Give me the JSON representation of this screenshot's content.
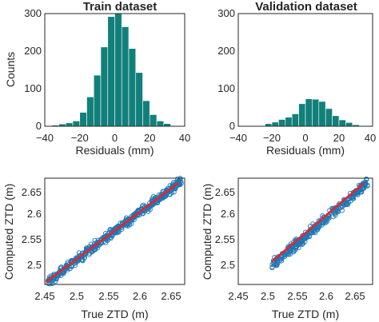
{
  "colors": {
    "bar": "#12807a",
    "scatter": "#1f77b4",
    "fit": "#e8232a",
    "axis": "#262626"
  },
  "chart_data": [
    {
      "type": "bar",
      "title": "Train dataset",
      "xlabel": "Residuals (mm)",
      "ylabel": "Counts",
      "xlim": [
        -40,
        40
      ],
      "ylim": [
        0,
        300
      ],
      "xticks": [
        "−40",
        "−20",
        "0",
        "20",
        "40"
      ],
      "yticks": [
        "0",
        "100",
        "200",
        "300"
      ],
      "bin_width": 4,
      "bin_centers": [
        -34,
        -30,
        -26,
        -22,
        -18,
        -14,
        -10,
        -6,
        -2,
        2,
        6,
        10,
        14,
        18,
        22,
        26,
        30
      ],
      "values": [
        3,
        6,
        9,
        14,
        37,
        78,
        136,
        211,
        292,
        300,
        265,
        207,
        143,
        68,
        31,
        14,
        7
      ]
    },
    {
      "type": "bar",
      "title": "Validation dataset",
      "xlabel": "Residuals (mm)",
      "ylabel": "",
      "xlim": [
        -40,
        40
      ],
      "ylim": [
        0,
        300
      ],
      "xticks": [
        "−40",
        "−20",
        "0",
        "20",
        "40"
      ],
      "yticks": [
        "0",
        "100",
        "200",
        "300"
      ],
      "bin_width": 4,
      "bin_centers": [
        -22,
        -18,
        -14,
        -10,
        -6,
        -2,
        2,
        6,
        10,
        14,
        18,
        22,
        26,
        30
      ],
      "values": [
        7,
        11,
        18,
        24,
        33,
        60,
        73,
        72,
        66,
        47,
        28,
        17,
        10,
        4
      ]
    },
    {
      "type": "scatter",
      "title": "",
      "xlabel": "True ZTD (m)",
      "ylabel": "Computed ZTD (m)",
      "xlim": [
        2.45,
        2.67
      ],
      "ylim": [
        2.45,
        2.67
      ],
      "xticks": [
        "2.45",
        "2.5",
        "2.55",
        "2.6",
        "2.65"
      ],
      "yticks": [
        "2.5",
        "2.55",
        "2.6",
        "2.65"
      ],
      "range": [
        2.455,
        2.665
      ],
      "fit_line": [
        [
          2.452,
          2.455
        ],
        [
          2.66,
          2.66
        ]
      ]
    },
    {
      "type": "scatter",
      "title": "",
      "xlabel": "True ZTD (m)",
      "ylabel": "Computed ZTD (m)",
      "xlim": [
        2.45,
        2.67
      ],
      "ylim": [
        2.47,
        2.67
      ],
      "xticks": [
        "2.45",
        "2.5",
        "2.55",
        "2.6",
        "2.65"
      ],
      "yticks": [
        "2.5",
        "2.55",
        "2.6",
        "2.65"
      ],
      "range": [
        2.505,
        2.662
      ],
      "fit_line": [
        [
          2.505,
          2.513
        ],
        [
          2.655,
          2.66
        ]
      ]
    }
  ]
}
